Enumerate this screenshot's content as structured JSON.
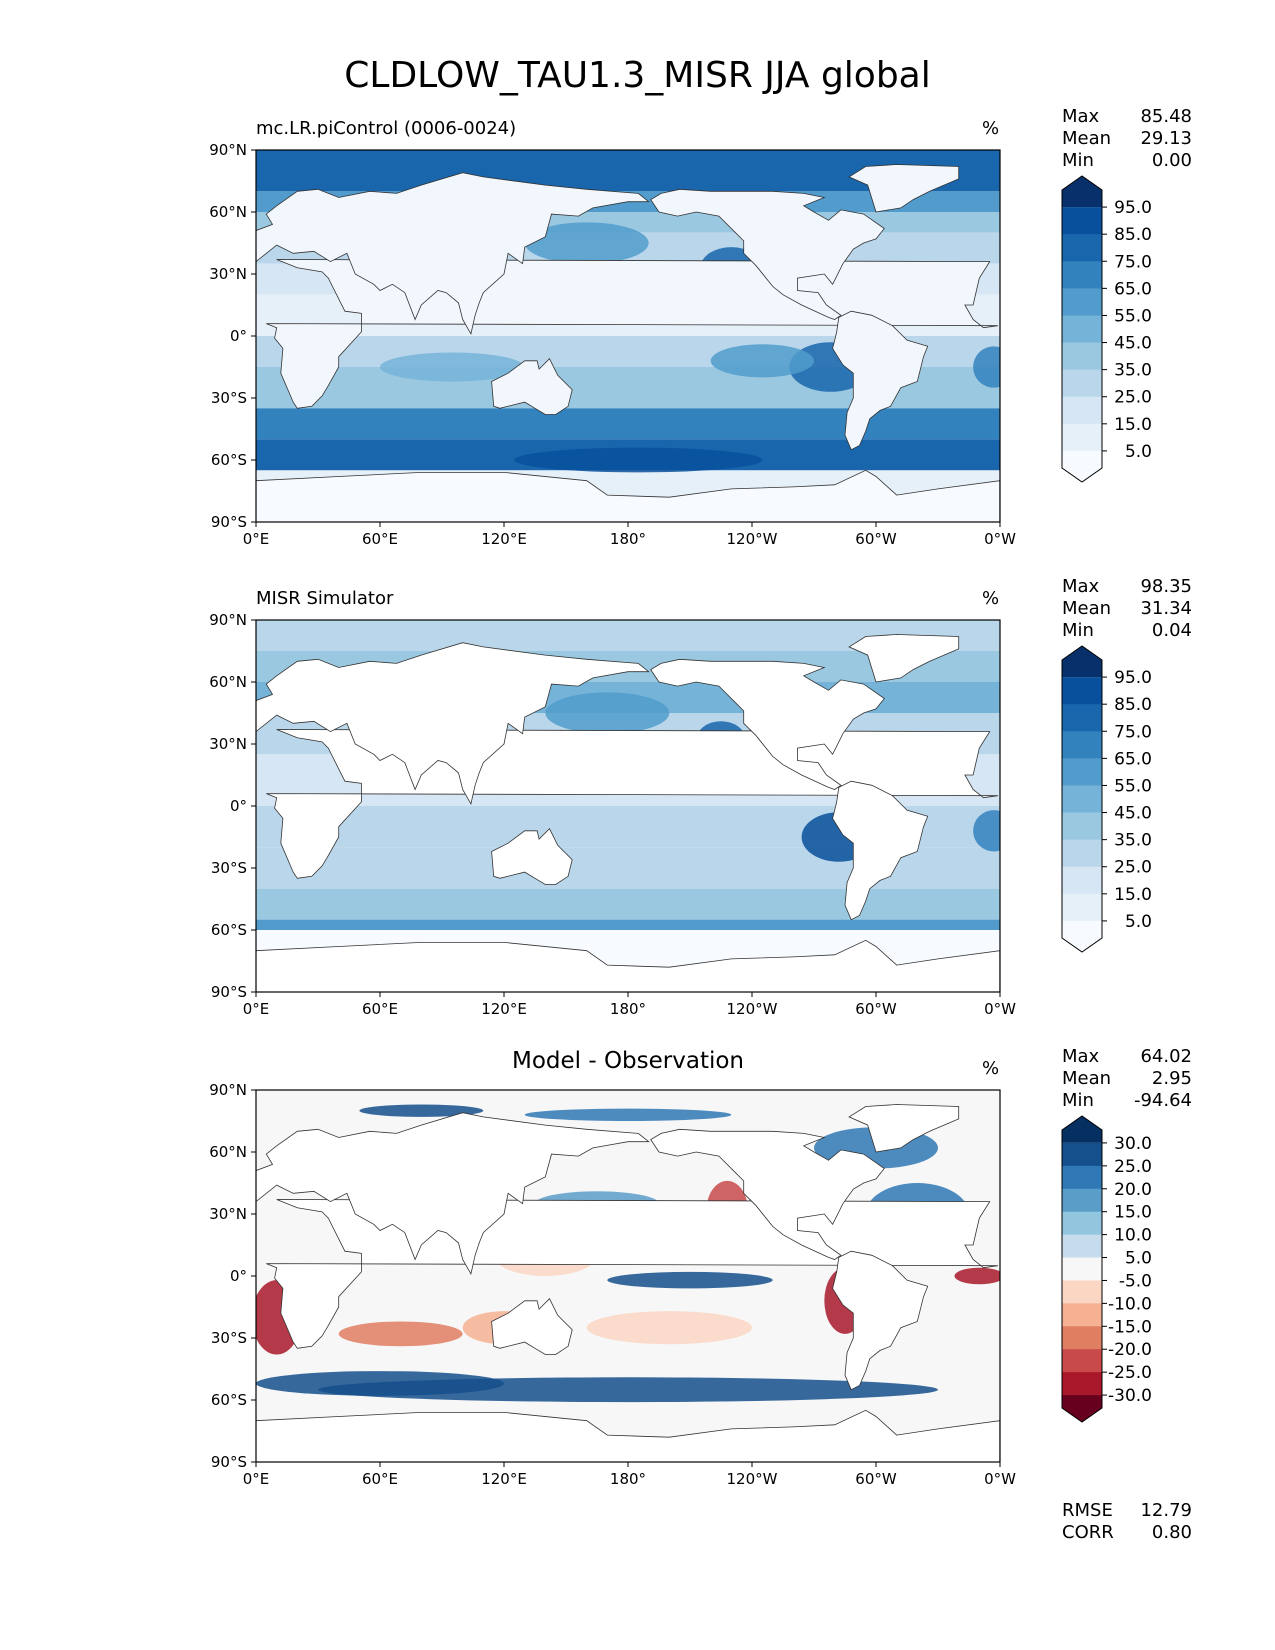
{
  "figure_title": "CLDLOW_TAU1.3_MISR JJA global",
  "chart_data": [
    {
      "type": "heatmap",
      "map_type": "global-equirectangular",
      "title": "mc.LR.piControl (0006-0024)",
      "unit": "%",
      "stats": {
        "max_label": "Max",
        "max": "85.48",
        "mean_label": "Mean",
        "mean": "29.13",
        "min_label": "Min",
        "min": "0.00"
      },
      "colorbar_levels": [
        "95.0",
        "85.0",
        "75.0",
        "65.0",
        "55.0",
        "45.0",
        "35.0",
        "25.0",
        "15.0",
        "5.0"
      ],
      "colorbar_colors": [
        "#08306b",
        "#08509b",
        "#1966ad",
        "#3282be",
        "#519ccc",
        "#75b4d8",
        "#9ac8e0",
        "#bad6eb",
        "#d6e6f4",
        "#e6f0f9",
        "#f7fbff"
      ],
      "xticks": [
        "0°E",
        "60°E",
        "120°E",
        "180°",
        "120°W",
        "60°W",
        "0°W"
      ],
      "yticks": [
        "90°N",
        "60°N",
        "30°N",
        "0°",
        "30°S",
        "60°S",
        "90°S"
      ],
      "xlim": [
        0,
        360
      ],
      "ylim": [
        -90,
        90
      ],
      "colormap": "Blues"
    },
    {
      "type": "heatmap",
      "map_type": "global-equirectangular",
      "title": "MISR Simulator",
      "unit": "%",
      "stats": {
        "max_label": "Max",
        "max": "98.35",
        "mean_label": "Mean",
        "mean": "31.34",
        "min_label": "Min",
        "min": "0.04"
      },
      "colorbar_levels": [
        "95.0",
        "85.0",
        "75.0",
        "65.0",
        "55.0",
        "45.0",
        "35.0",
        "25.0",
        "15.0",
        "5.0"
      ],
      "colorbar_colors": [
        "#08306b",
        "#08509b",
        "#1966ad",
        "#3282be",
        "#519ccc",
        "#75b4d8",
        "#9ac8e0",
        "#bad6eb",
        "#d6e6f4",
        "#e6f0f9",
        "#f7fbff"
      ],
      "xticks": [
        "0°E",
        "60°E",
        "120°E",
        "180°",
        "120°W",
        "60°W",
        "0°W"
      ],
      "yticks": [
        "90°N",
        "60°N",
        "30°N",
        "0°",
        "30°S",
        "60°S",
        "90°S"
      ],
      "xlim": [
        0,
        360
      ],
      "ylim": [
        -90,
        90
      ],
      "colormap": "Blues"
    },
    {
      "type": "heatmap",
      "map_type": "global-equirectangular",
      "title": "Model - Observation",
      "unit": "%",
      "stats": {
        "max_label": "Max",
        "max": "64.02",
        "mean_label": "Mean",
        "mean": "2.95",
        "min_label": "Min",
        "min": "-94.64"
      },
      "colorbar_levels": [
        "30.0",
        "25.0",
        "20.0",
        "15.0",
        "10.0",
        "5.0",
        "-5.0",
        "-10.0",
        "-15.0",
        "-20.0",
        "-25.0",
        "-30.0"
      ],
      "colorbar_colors": [
        "#053061",
        "#154f8c",
        "#2f78b5",
        "#5a9dc8",
        "#92c5de",
        "#c6dcec",
        "#f7f7f7",
        "#fbd6c3",
        "#f6b193",
        "#e07e62",
        "#c84a4a",
        "#a8172a",
        "#67001f"
      ],
      "footer": {
        "rmse_label": "RMSE",
        "rmse": "12.79",
        "corr_label": "CORR",
        "corr": "0.80"
      },
      "xticks": [
        "0°E",
        "60°E",
        "120°E",
        "180°",
        "120°W",
        "60°W",
        "0°W"
      ],
      "yticks": [
        "90°N",
        "60°N",
        "30°N",
        "0°",
        "30°S",
        "60°S",
        "90°S"
      ],
      "xlim": [
        0,
        360
      ],
      "ylim": [
        -90,
        90
      ],
      "colormap": "RdBu_r"
    }
  ]
}
